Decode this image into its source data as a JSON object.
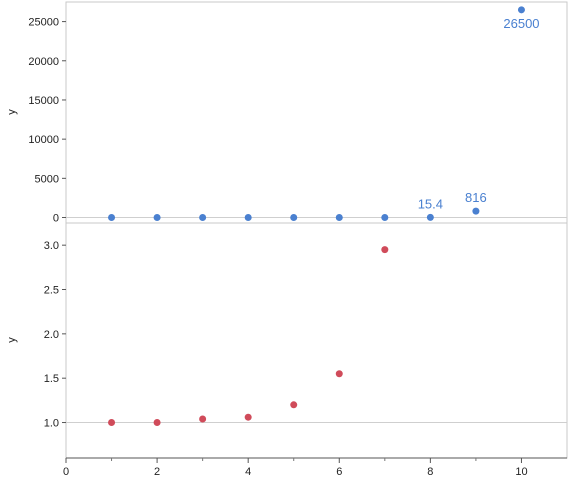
{
  "chart_data": [
    {
      "type": "scatter",
      "panel": "top",
      "ylabel": "y",
      "ylim": [
        -700,
        27500
      ],
      "yticks": [
        0,
        5000,
        10000,
        15000,
        20000,
        25000
      ],
      "reference_line_y": 0,
      "color": "#4a80d0",
      "x": [
        1,
        2,
        3,
        4,
        5,
        6,
        7,
        8,
        9,
        10
      ],
      "y": [
        1,
        1,
        1.04,
        1.06,
        1.2,
        1.55,
        2.95,
        15.4,
        816,
        26500
      ],
      "data_labels": [
        {
          "x": 8,
          "text": "15.4",
          "position": "above"
        },
        {
          "x": 9,
          "text": "816",
          "position": "above"
        },
        {
          "x": 10,
          "text": "26500",
          "position": "below"
        }
      ]
    },
    {
      "type": "scatter",
      "panel": "bottom",
      "ylabel": "y",
      "ylim": [
        0.6,
        3.25
      ],
      "yticks": [
        "1.0",
        "1.5",
        "2.0",
        "2.5",
        "3.0"
      ],
      "reference_line_y": 1.0,
      "color": "#d04b5a",
      "x": [
        1,
        2,
        3,
        4,
        5,
        6,
        7
      ],
      "y": [
        1,
        1,
        1.04,
        1.06,
        1.2,
        1.55,
        2.95
      ]
    }
  ],
  "x_axis": {
    "xlim": [
      0,
      11
    ],
    "xticks": [
      0,
      2,
      4,
      6,
      8,
      10
    ]
  }
}
